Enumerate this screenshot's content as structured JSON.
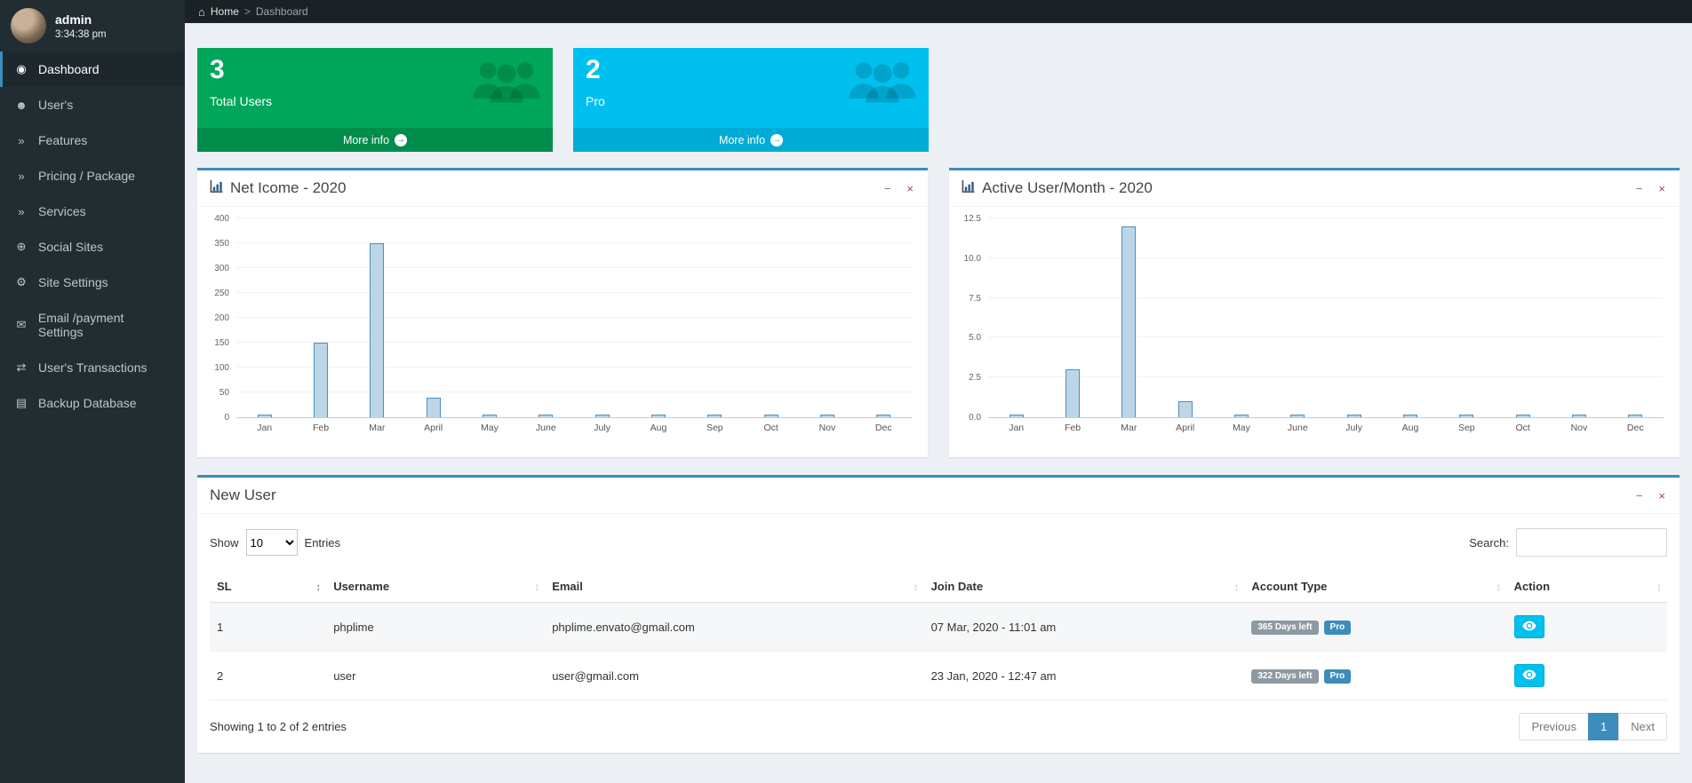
{
  "colors": {
    "accent": "#3c8dbc",
    "sidebar_bg": "#222d32",
    "topbar_bg": "#1a2226",
    "content_bg": "#ecf0f5",
    "green": "#00a65a",
    "green_footer": "#008d4c",
    "cyan": "#00c0ef",
    "cyan_footer": "#00acd6",
    "badge_gray": "#8e9aa2",
    "badge_blue": "#3c8dbc"
  },
  "icons": {
    "home_glyph": "⌂",
    "breadcrumb_separator": ">",
    "sort": "↕",
    "more_arrow": "→",
    "collapse": "−",
    "close": "×"
  },
  "sidebar": {
    "user": {
      "name": "admin",
      "time": "3:34:38 pm"
    },
    "items": [
      {
        "id": "dashboard",
        "label": "Dashboard",
        "glyph": "◉",
        "active": true
      },
      {
        "id": "users",
        "label": "User's",
        "glyph": "☻",
        "active": false
      },
      {
        "id": "features",
        "label": "Features",
        "glyph": "»",
        "active": false
      },
      {
        "id": "pricing-package",
        "label": "Pricing / Package",
        "glyph": "»",
        "active": false
      },
      {
        "id": "services",
        "label": "Services",
        "glyph": "»",
        "active": false
      },
      {
        "id": "social-sites",
        "label": "Social Sites",
        "glyph": "⊕",
        "active": false
      },
      {
        "id": "site-settings",
        "label": "Site Settings",
        "glyph": "⚙",
        "active": false
      },
      {
        "id": "email-payment-settings",
        "label": "Email /payment Settings",
        "glyph": "✉",
        "active": false
      },
      {
        "id": "users-transactions",
        "label": "User's Transactions",
        "glyph": "⇄",
        "active": false
      },
      {
        "id": "backup-database",
        "label": "Backup Database",
        "glyph": "▤",
        "active": false
      }
    ]
  },
  "breadcrumb": {
    "home": "Home",
    "current": "Dashboard"
  },
  "info_boxes": [
    {
      "id": "total-users",
      "value": "3",
      "label": "Total Users",
      "more_label": "More info",
      "color": "#00a65a",
      "footer_color": "#008d4c"
    },
    {
      "id": "pro",
      "value": "2",
      "label": "Pro",
      "more_label": "More info",
      "color": "#00c0ef",
      "footer_color": "#00acd6"
    }
  ],
  "chart_data": [
    {
      "type": "bar",
      "title": "Net Icome - 2020",
      "categories": [
        "Jan",
        "Feb",
        "Mar",
        "April",
        "May",
        "June",
        "July",
        "Aug",
        "Sep",
        "Oct",
        "Nov",
        "Dec"
      ],
      "values": [
        0,
        150,
        350,
        40,
        0,
        0,
        0,
        0,
        0,
        0,
        0,
        0
      ],
      "xlabel": "",
      "ylabel": "",
      "ylim": [
        0,
        400
      ],
      "yticks": [
        0,
        50,
        100,
        150,
        200,
        250,
        300,
        350,
        400
      ],
      "ytick_labels": [
        "0",
        "50",
        "100",
        "150",
        "200",
        "250",
        "300",
        "350",
        "400"
      ],
      "grid": true,
      "legend": false
    },
    {
      "type": "bar",
      "title": "Active User/Month - 2020",
      "categories": [
        "Jan",
        "Feb",
        "Mar",
        "April",
        "May",
        "June",
        "July",
        "Aug",
        "Sep",
        "Oct",
        "Nov",
        "Dec"
      ],
      "values": [
        0,
        3,
        12,
        1,
        0,
        0,
        0,
        0,
        0,
        0,
        0,
        0
      ],
      "xlabel": "",
      "ylabel": "",
      "ylim": [
        0,
        12.5
      ],
      "yticks": [
        0,
        2.5,
        5,
        7.5,
        10,
        12.5
      ],
      "ytick_labels": [
        "0.0",
        "2.5",
        "5.0",
        "7.5",
        "10.0",
        "12.5"
      ],
      "grid": true,
      "legend": false
    }
  ],
  "new_user": {
    "title": "New User",
    "show_label": "Show",
    "page_size": "10",
    "entries_label": "Entries",
    "search_label": "Search:",
    "table": {
      "headers": [
        "SL",
        "Username",
        "Email",
        "Join Date",
        "Account Type",
        "Action"
      ],
      "rows": [
        {
          "sl": "1",
          "username": "phplime",
          "email": "phplime.envato@gmail.com",
          "join_date": "07 Mar, 2020 - 11:01 am",
          "days_left": "365 Days left",
          "plan": "Pro"
        },
        {
          "sl": "2",
          "username": "user",
          "email": "user@gmail.com",
          "join_date": "23 Jan, 2020 - 12:47 am",
          "days_left": "322 Days left",
          "plan": "Pro"
        }
      ]
    },
    "footer": {
      "info": "Showing 1 to 2 of 2 entries",
      "prev": "Previous",
      "page": "1",
      "next": "Next"
    }
  }
}
